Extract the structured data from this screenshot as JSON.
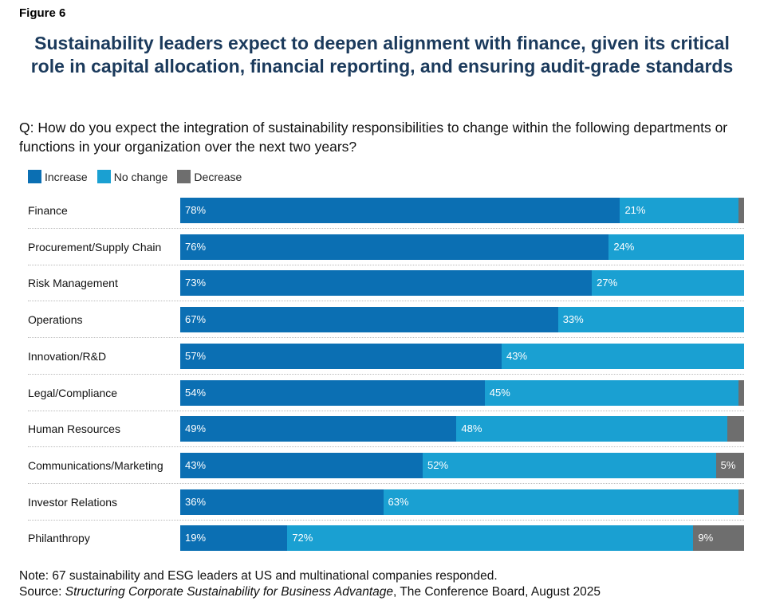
{
  "figure_label": "Figure 6",
  "chart_data": {
    "type": "bar",
    "orientation": "horizontal",
    "stacked": true,
    "title": "Sustainability leaders expect to deepen alignment with finance, given its critical role in capital allocation, financial reporting, and ensuring audit-grade standards",
    "subtitle": "Q: How do you expect the integration of sustainability responsibilities to change within the following departments or functions in your organization over the next two years?",
    "categories": [
      "Finance",
      "Procurement/Supply Chain",
      "Risk Management",
      "Operations",
      "Innovation/R&D",
      "Legal/Compliance",
      "Human Resources",
      "Communications/Marketing",
      "Investor Relations",
      "Philanthropy"
    ],
    "series": [
      {
        "name": "Increase",
        "color": "#0b6fb3",
        "values": [
          78,
          76,
          73,
          67,
          57,
          54,
          49,
          43,
          36,
          19
        ]
      },
      {
        "name": "No change",
        "color": "#1aa0d2",
        "values": [
          21,
          24,
          27,
          33,
          43,
          45,
          48,
          52,
          63,
          72
        ]
      },
      {
        "name": "Decrease",
        "color": "#6e6e6e",
        "values": [
          1,
          0,
          0,
          0,
          0,
          1,
          3,
          5,
          1,
          9
        ]
      }
    ],
    "xlim": [
      0,
      100
    ],
    "legend_position": "top-left",
    "grid": false
  },
  "footer": {
    "note": "Note: 67 sustainability and ESG leaders at US and multinational companies responded.",
    "source_prefix": "Source: ",
    "source_title": "Structuring Corporate Sustainability for Business Advantage",
    "source_suffix": ", The Conference Board, August 2025"
  }
}
